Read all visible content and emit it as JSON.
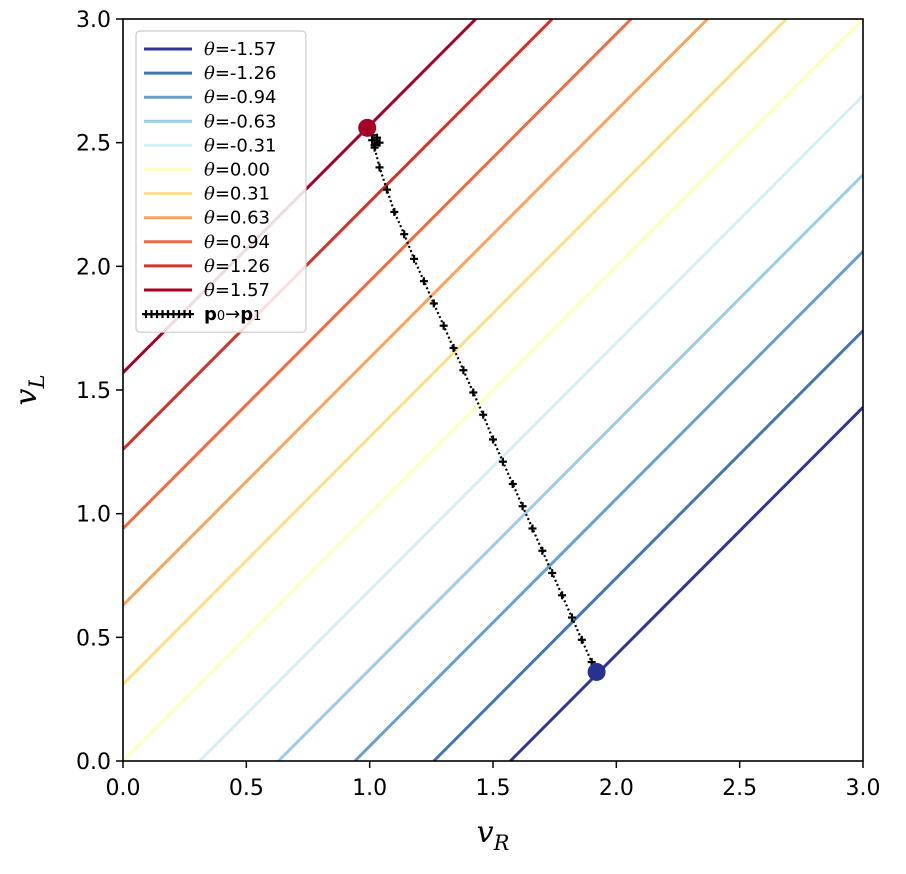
{
  "chart_data": {
    "type": "line",
    "xlabel": "v",
    "xlabel_sub": "R",
    "ylabel": "v",
    "ylabel_sub": "L",
    "xlim": [
      0.0,
      3.0
    ],
    "ylim": [
      0.0,
      3.0
    ],
    "xticks": [
      "0.0",
      "0.5",
      "1.0",
      "1.5",
      "2.0",
      "2.5",
      "3.0"
    ],
    "yticks": [
      "0.0",
      "0.5",
      "1.0",
      "1.5",
      "2.0",
      "2.5",
      "3.0"
    ],
    "grid": false,
    "legend_position": "top-left",
    "series": [
      {
        "name": "θ=-1.57",
        "theta": -1.57,
        "color": "#313695",
        "points": [
          [
            1.57,
            0.0
          ],
          [
            3.0,
            1.43
          ]
        ]
      },
      {
        "name": "θ=-1.26",
        "theta": -1.26,
        "color": "#4575b4",
        "points": [
          [
            1.26,
            0.0
          ],
          [
            3.0,
            1.74
          ]
        ]
      },
      {
        "name": "θ=-0.94",
        "theta": -0.94,
        "color": "#6a9fcc",
        "points": [
          [
            0.94,
            0.0
          ],
          [
            3.0,
            2.06
          ]
        ]
      },
      {
        "name": "θ=-0.63",
        "theta": -0.63,
        "color": "#9ccde6",
        "points": [
          [
            0.63,
            0.0
          ],
          [
            3.0,
            2.37
          ]
        ]
      },
      {
        "name": "θ=-0.31",
        "theta": -0.31,
        "color": "#d6eef5",
        "points": [
          [
            0.31,
            0.0
          ],
          [
            3.0,
            2.69
          ]
        ]
      },
      {
        "name": "θ=0.00",
        "theta": 0.0,
        "color": "#ffffbf",
        "points": [
          [
            0.0,
            0.0
          ],
          [
            3.0,
            3.0
          ]
        ]
      },
      {
        "name": "θ=0.31",
        "theta": 0.31,
        "color": "#fddf87",
        "points": [
          [
            0.0,
            0.31
          ],
          [
            2.69,
            3.0
          ]
        ]
      },
      {
        "name": "θ=0.63",
        "theta": 0.63,
        "color": "#fba35c",
        "points": [
          [
            0.0,
            0.63
          ],
          [
            2.37,
            3.0
          ]
        ]
      },
      {
        "name": "θ=0.94",
        "theta": 0.94,
        "color": "#f06b42",
        "points": [
          [
            0.0,
            0.94
          ],
          [
            2.06,
            3.0
          ]
        ]
      },
      {
        "name": "θ=1.26",
        "theta": 1.26,
        "color": "#d73027",
        "points": [
          [
            0.0,
            1.26
          ],
          [
            1.74,
            3.0
          ]
        ]
      },
      {
        "name": "θ=1.57",
        "theta": 1.57,
        "color": "#a50026",
        "points": [
          [
            0.0,
            1.57
          ],
          [
            1.43,
            3.0
          ]
        ]
      }
    ],
    "path": {
      "name_prefix": "p",
      "name_sub0": "0",
      "name_arrow": "→",
      "name_sub1": "1",
      "color": "#000000",
      "points": [
        [
          1.92,
          0.36
        ],
        [
          1.9,
          0.4
        ],
        [
          1.86,
          0.49
        ],
        [
          1.82,
          0.58
        ],
        [
          1.78,
          0.67
        ],
        [
          1.74,
          0.76
        ],
        [
          1.7,
          0.85
        ],
        [
          1.66,
          0.94
        ],
        [
          1.62,
          1.03
        ],
        [
          1.58,
          1.12
        ],
        [
          1.54,
          1.21
        ],
        [
          1.5,
          1.3
        ],
        [
          1.46,
          1.4
        ],
        [
          1.42,
          1.49
        ],
        [
          1.38,
          1.58
        ],
        [
          1.34,
          1.67
        ],
        [
          1.3,
          1.76
        ],
        [
          1.26,
          1.85
        ],
        [
          1.22,
          1.94
        ],
        [
          1.18,
          2.03
        ],
        [
          1.14,
          2.13
        ],
        [
          1.1,
          2.22
        ],
        [
          1.07,
          2.31
        ],
        [
          1.04,
          2.4
        ],
        [
          1.02,
          2.48
        ],
        [
          1.01,
          2.51
        ],
        [
          1.02,
          2.49
        ],
        [
          1.04,
          2.5
        ],
        [
          1.03,
          2.52
        ],
        [
          1.01,
          2.53
        ]
      ],
      "start": {
        "point": [
          1.92,
          0.36
        ],
        "color": "#27318f"
      },
      "end": {
        "point": [
          0.99,
          2.56
        ],
        "color": "#a50026"
      }
    }
  }
}
